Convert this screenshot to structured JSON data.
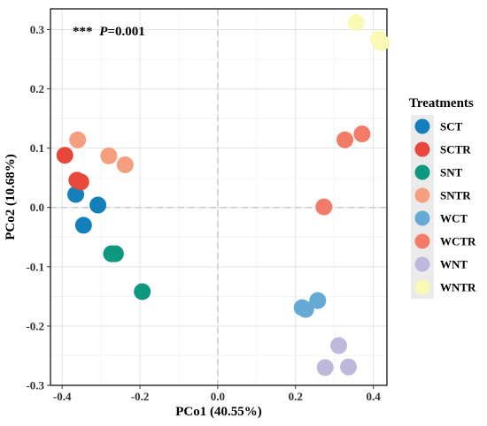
{
  "chart_data": {
    "type": "scatter",
    "xlabel": "PCo1 (40.55%)",
    "ylabel": "PCo2 (10.68%)",
    "xlim": [
      -0.43,
      0.435
    ],
    "ylim": [
      -0.3,
      0.335
    ],
    "xticks": [
      -0.4,
      -0.2,
      0.0,
      0.2,
      0.4
    ],
    "xtick_labels": [
      "-0.4",
      "-0.2",
      "0.0",
      "0.2",
      "0.4"
    ],
    "yticks": [
      -0.3,
      -0.2,
      -0.1,
      0.0,
      0.1,
      0.2,
      0.3
    ],
    "ytick_labels": [
      "-0.3",
      "-0.2",
      "-0.1",
      "0.0",
      "0.1",
      "0.2",
      "0.3"
    ],
    "grid": true,
    "zero_lines": true,
    "annotation": {
      "stars": "***",
      "p_symbol": "P",
      "p_value": "=0.001"
    },
    "legend": {
      "title": "Treatments",
      "placement": "right"
    },
    "series": [
      {
        "name": "SCT",
        "color": "#1380BB",
        "points": [
          [
            -0.365,
            0.022
          ],
          [
            -0.308,
            0.004
          ],
          [
            -0.345,
            -0.03
          ]
        ]
      },
      {
        "name": "SCTR",
        "color": "#E8483A",
        "points": [
          [
            -0.393,
            0.088
          ],
          [
            -0.362,
            0.046
          ],
          [
            -0.352,
            0.043
          ]
        ]
      },
      {
        "name": "SNT",
        "color": "#0E9880",
        "points": [
          [
            -0.273,
            -0.078
          ],
          [
            -0.263,
            -0.078
          ],
          [
            -0.194,
            -0.142
          ]
        ]
      },
      {
        "name": "SNTR",
        "color": "#F59F7E",
        "points": [
          [
            -0.36,
            0.114
          ],
          [
            -0.28,
            0.087
          ],
          [
            -0.238,
            0.072
          ]
        ]
      },
      {
        "name": "WCT",
        "color": "#64AAD5",
        "points": [
          [
            0.217,
            -0.169
          ],
          [
            0.226,
            -0.172
          ],
          [
            0.257,
            -0.157
          ]
        ]
      },
      {
        "name": "WCTR",
        "color": "#F27C67",
        "points": [
          [
            0.273,
            0.001
          ],
          [
            0.327,
            0.114
          ],
          [
            0.371,
            0.124
          ]
        ]
      },
      {
        "name": "WNT",
        "color": "#BEB9DC",
        "points": [
          [
            0.311,
            -0.233
          ],
          [
            0.276,
            -0.27
          ],
          [
            0.336,
            -0.269
          ]
        ]
      },
      {
        "name": "WNTR",
        "color": "#FAFAB4",
        "points": [
          [
            0.356,
            0.312
          ],
          [
            0.413,
            0.284
          ],
          [
            0.42,
            0.278
          ]
        ]
      }
    ]
  }
}
